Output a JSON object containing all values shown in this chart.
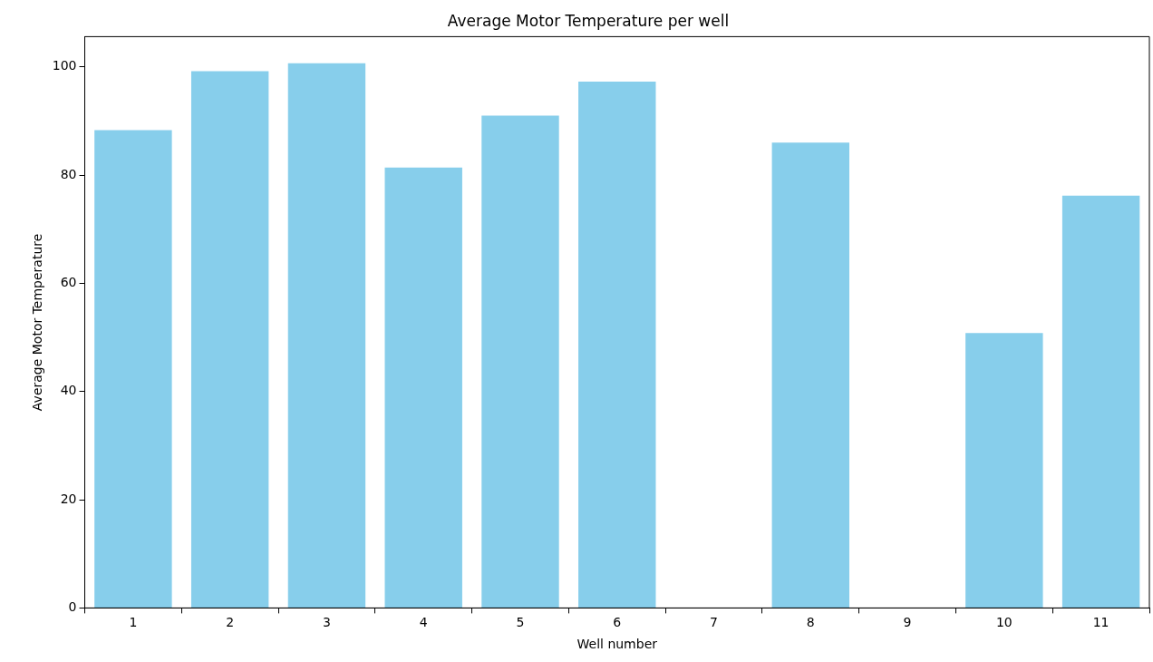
{
  "chart_data": {
    "type": "bar",
    "title": "Average Motor Temperature per well",
    "xlabel": "Well number",
    "ylabel": "Average Motor Temperature",
    "categories": [
      "1",
      "2",
      "3",
      "4",
      "5",
      "6",
      "7",
      "8",
      "9",
      "10",
      "11"
    ],
    "values": [
      88.3,
      99.2,
      100.7,
      81.4,
      91.0,
      97.3,
      null,
      86.0,
      null,
      50.8,
      76.2
    ],
    "color": "#87ceeb",
    "ylim": [
      0,
      105.6
    ],
    "yticks": [
      0,
      20,
      40,
      60,
      80,
      100
    ]
  }
}
